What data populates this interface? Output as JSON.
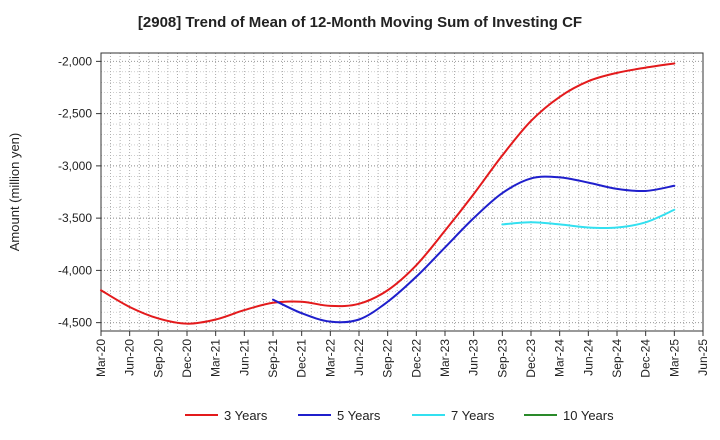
{
  "chart_data": {
    "type": "line",
    "title": "[2908]  Trend of Mean of 12-Month Moving Sum of Investing CF",
    "xlabel": "",
    "ylabel": "Amount (million yen)",
    "ylim": [
      -4580,
      -1920
    ],
    "yticks": [
      -2000,
      -2500,
      -3000,
      -3500,
      -4000,
      -4500
    ],
    "ytick_labels": [
      "-2,000",
      "-2,500",
      "-3,000",
      "-3,500",
      "-4,000",
      "-4,500"
    ],
    "categories": [
      "Mar-20",
      "Jun-20",
      "Sep-20",
      "Dec-20",
      "Mar-21",
      "Jun-21",
      "Sep-21",
      "Dec-21",
      "Mar-22",
      "Jun-22",
      "Sep-22",
      "Dec-22",
      "Mar-23",
      "Jun-23",
      "Sep-23",
      "Dec-23",
      "Mar-24",
      "Jun-24",
      "Sep-24",
      "Dec-24",
      "Mar-25",
      "Jun-25"
    ],
    "grid": true,
    "legend_position": "bottom",
    "series": [
      {
        "name": "3 Years",
        "color": "#e31a1c",
        "values": [
          -4190,
          -4350,
          -4460,
          -4510,
          -4470,
          -4380,
          -4310,
          -4300,
          -4340,
          -4320,
          -4190,
          -3950,
          -3620,
          -3270,
          -2900,
          -2570,
          -2340,
          -2190,
          -2110,
          -2060,
          -2020,
          null
        ]
      },
      {
        "name": "5 Years",
        "color": "#1f1fcc",
        "values": [
          null,
          null,
          null,
          null,
          null,
          null,
          -4280,
          -4410,
          -4490,
          -4470,
          -4300,
          -4060,
          -3780,
          -3500,
          -3260,
          -3120,
          -3110,
          -3160,
          -3220,
          -3240,
          -3190,
          null
        ]
      },
      {
        "name": "7 Years",
        "color": "#33e0f0",
        "values": [
          null,
          null,
          null,
          null,
          null,
          null,
          null,
          null,
          null,
          null,
          null,
          null,
          null,
          null,
          -3560,
          -3540,
          -3560,
          -3590,
          -3590,
          -3540,
          -3420,
          null
        ]
      },
      {
        "name": "10 Years",
        "color": "#2a8a2a",
        "values": [
          null,
          null,
          null,
          null,
          null,
          null,
          null,
          null,
          null,
          null,
          null,
          null,
          null,
          null,
          null,
          null,
          null,
          null,
          null,
          null,
          null,
          null
        ]
      }
    ]
  }
}
